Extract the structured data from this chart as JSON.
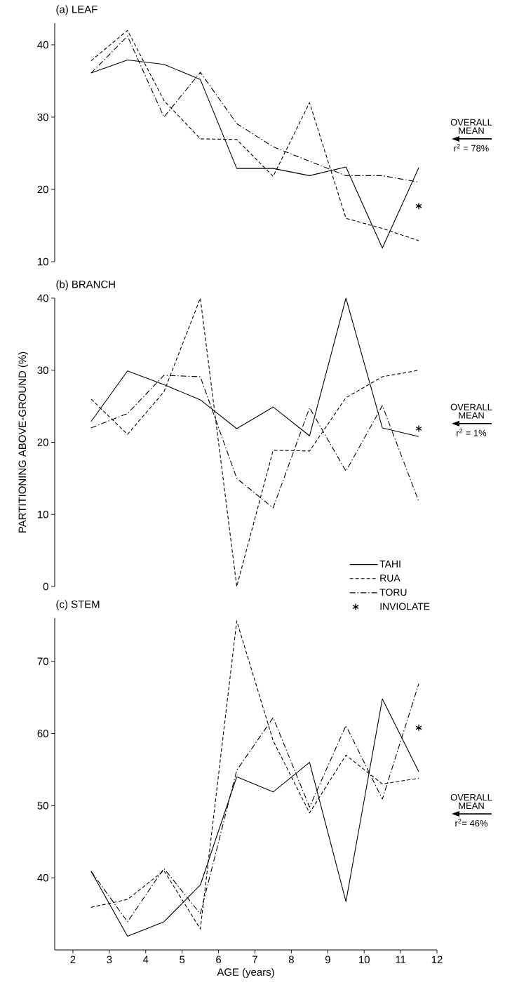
{
  "chart_data": [
    {
      "type": "line",
      "title": "(a) LEAF",
      "xlim": [
        1.5,
        12
      ],
      "xticks": [
        2,
        3,
        4,
        5,
        6,
        7,
        8,
        9,
        10,
        11,
        12
      ],
      "ylim": [
        10,
        43
      ],
      "yticks": [
        10,
        20,
        30,
        40
      ],
      "tick_labels": "y",
      "marker": "none",
      "x": [
        2.5,
        3.5,
        4.5,
        5.5,
        6.5,
        7.5,
        8.5,
        9.5,
        10.5,
        11.5
      ],
      "series": [
        {
          "color": "#000000",
          "line_style": "solid",
          "values": [
            36.1,
            37.9,
            37.3,
            35.2,
            22.9,
            22.9,
            21.9,
            23.1,
            11.9,
            23.0
          ]
        },
        {
          "color": "#000000",
          "line_style": "dashed",
          "values": [
            37.8,
            42.0,
            32.3,
            27.0,
            26.9,
            21.8,
            32.0,
            16.0,
            14.6,
            12.9
          ]
        },
        {
          "color": "#000000",
          "line_style": "dashdot",
          "values": [
            36.1,
            41.2,
            30.0,
            36.2,
            29.1,
            25.9,
            23.9,
            21.9,
            21.9,
            21.0
          ]
        },
        {
          "type": "scatter",
          "marker": "cross",
          "color": "#000000",
          "values": [
            null,
            null,
            null,
            null,
            null,
            null,
            null,
            null,
            null,
            17.7
          ]
        }
      ],
      "annotations": [
        "OVERALL MEAN",
        "r$^{2}$ = 78%"
      ]
    },
    {
      "type": "line",
      "title": "(b) BRANCH",
      "ylabel": "PARTITIONING ABOVE-GROUND (%)",
      "xlim": [
        1.5,
        12
      ],
      "xticks": [
        2,
        3,
        4,
        5,
        6,
        7,
        8,
        9,
        10,
        11,
        12
      ],
      "ylim": [
        0,
        40
      ],
      "yticks": [
        0,
        10,
        20,
        30,
        40
      ],
      "tick_labels": "y",
      "marker": "none",
      "legend": "bottom right",
      "x": [
        2.5,
        3.5,
        4.5,
        5.5,
        6.5,
        7.5,
        8.5,
        9.5,
        10.5,
        11.5
      ],
      "series": [
        {
          "name": "TAHI",
          "color": "#000000",
          "line_style": "solid",
          "values": [
            22.9,
            29.9,
            28.0,
            25.9,
            21.9,
            24.9,
            20.9,
            40.0,
            22.0,
            20.8
          ]
        },
        {
          "name": "RUA",
          "color": "#000000",
          "line_style": "dashed",
          "values": [
            26.0,
            21.1,
            27.0,
            40.0,
            0,
            18.9,
            18.8,
            26.2,
            29.1,
            30.0
          ]
        },
        {
          "name": "TORU",
          "color": "#000000",
          "line_style": "dashdot",
          "values": [
            22.0,
            24.0,
            29.3,
            29.1,
            15.0,
            10.9,
            24.8,
            16.0,
            25.1,
            11.8
          ]
        },
        {
          "name": "INVIOLATE",
          "type": "scatter",
          "marker": "cross",
          "color": "#000000",
          "values": [
            null,
            null,
            null,
            null,
            null,
            null,
            null,
            null,
            null,
            21.9
          ]
        }
      ],
      "annotations": [
        "OVERALL MEAN",
        "r$^{2}$ = 1%"
      ]
    },
    {
      "type": "line",
      "title": "(c) STEM",
      "xlabel": "AGE (years)",
      "xlim": [
        1.5,
        12
      ],
      "xticks": [
        2,
        3,
        4,
        5,
        6,
        7,
        8,
        9,
        10,
        11,
        12
      ],
      "ylim": [
        30,
        76
      ],
      "yticks": [
        40,
        50,
        60,
        70
      ],
      "marker": "none",
      "x": [
        2.5,
        3.5,
        4.5,
        5.5,
        6.5,
        7.5,
        8.5,
        9.5,
        10.5,
        11.5
      ],
      "series": [
        {
          "color": "#000000",
          "line_style": "solid",
          "values": [
            40.9,
            31.9,
            33.9,
            39.0,
            54.0,
            51.9,
            56.0,
            36.7,
            64.8,
            54.7
          ]
        },
        {
          "color": "#000000",
          "line_style": "dashed",
          "values": [
            35.9,
            37.0,
            41.0,
            32.9,
            75.6,
            59.0,
            49.0,
            57.0,
            53.0,
            53.8
          ]
        },
        {
          "color": "#000000",
          "line_style": "dashdot",
          "values": [
            40.9,
            33.9,
            41.3,
            35.0,
            54.9,
            62.2,
            49.8,
            61.1,
            50.9,
            66.9
          ]
        },
        {
          "type": "scatter",
          "marker": "cross",
          "color": "#000000",
          "values": [
            null,
            null,
            null,
            null,
            null,
            null,
            null,
            null,
            null,
            60.8
          ]
        }
      ],
      "annotations": [
        "OVERALL MEAN",
        "r$^{2}$= 46%"
      ]
    }
  ]
}
